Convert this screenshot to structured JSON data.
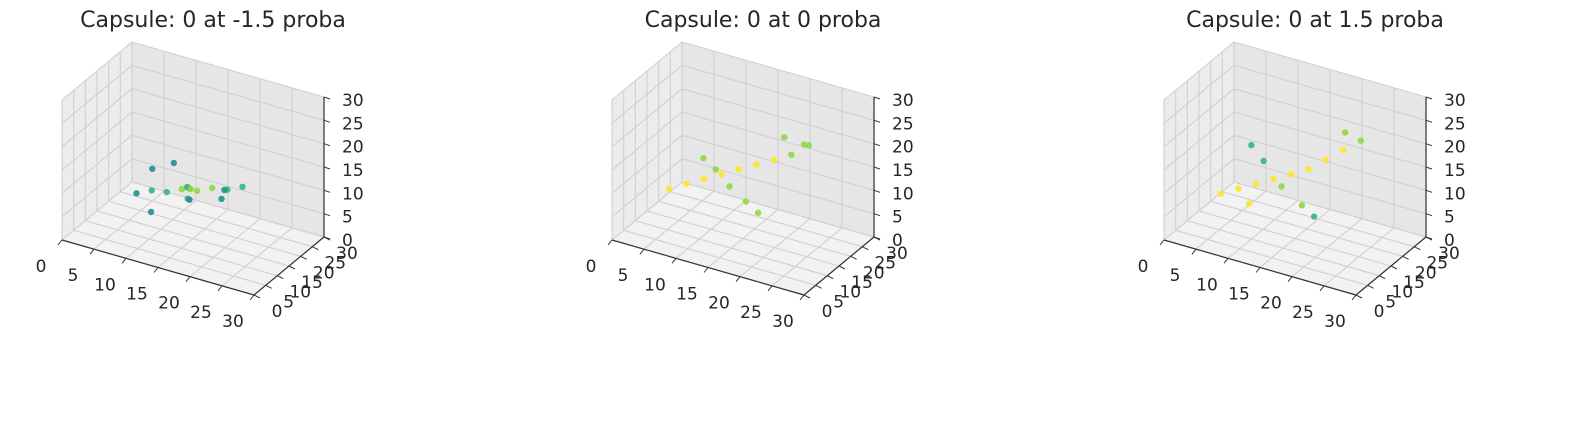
{
  "chart_data": [
    {
      "type": "scatter",
      "title": "Capsule: 0 at -1.5 proba",
      "xlabel": "",
      "ylabel": "",
      "zlabel": "",
      "xlim": [
        0,
        30
      ],
      "ylim": [
        0,
        30
      ],
      "zlim": [
        0,
        30
      ],
      "x_ticks": [
        "0",
        "5",
        "10",
        "15",
        "20",
        "25",
        "30"
      ],
      "y_ticks": [
        "0",
        "5",
        "10",
        "15",
        "20",
        "25",
        "30"
      ],
      "z_ticks": [
        "0",
        "5",
        "10",
        "15",
        "20",
        "25",
        "30"
      ],
      "grid": true,
      "colormap": [
        "#440154",
        "#31688e",
        "#21918c",
        "#35b779",
        "#90d743",
        "#fde725"
      ],
      "points": [
        {
          "x": 8,
          "y": 10,
          "z": 9,
          "v": 0.4
        },
        {
          "x": 10,
          "y": 11,
          "z": 10,
          "v": 0.5
        },
        {
          "x": 12,
          "y": 12,
          "z": 10,
          "v": 0.6
        },
        {
          "x": 14,
          "y": 13,
          "z": 11,
          "v": 0.7
        },
        {
          "x": 16,
          "y": 14,
          "z": 11,
          "v": 0.8
        },
        {
          "x": 18,
          "y": 15,
          "z": 12,
          "v": 0.7
        },
        {
          "x": 20,
          "y": 16,
          "z": 12,
          "v": 0.6
        },
        {
          "x": 22,
          "y": 17,
          "z": 13,
          "v": 0.5
        },
        {
          "x": 13,
          "y": 18,
          "z": 9,
          "v": 0.5
        },
        {
          "x": 14,
          "y": 16,
          "z": 10,
          "v": 0.6
        },
        {
          "x": 15,
          "y": 14,
          "z": 11,
          "v": 0.7
        },
        {
          "x": 16,
          "y": 10,
          "z": 11,
          "v": 0.5
        },
        {
          "x": 17,
          "y": 8,
          "z": 12,
          "v": 0.4
        },
        {
          "x": 9,
          "y": 14,
          "z": 13,
          "v": 0.3
        },
        {
          "x": 21,
          "y": 12,
          "z": 14,
          "v": 0.3
        },
        {
          "x": 12,
          "y": 15,
          "z": 15,
          "v": 0.4
        },
        {
          "x": 18,
          "y": 19,
          "z": 8,
          "v": 0.3
        },
        {
          "x": 11,
          "y": 8,
          "z": 7,
          "v": 0.3
        }
      ]
    },
    {
      "type": "scatter",
      "title": "Capsule: 0 at 0 proba",
      "xlabel": "",
      "ylabel": "",
      "zlabel": "",
      "xlim": [
        0,
        30
      ],
      "ylim": [
        0,
        30
      ],
      "zlim": [
        0,
        30
      ],
      "x_ticks": [
        "0",
        "5",
        "10",
        "15",
        "20",
        "25",
        "30"
      ],
      "y_ticks": [
        "0",
        "5",
        "10",
        "15",
        "20",
        "25",
        "30"
      ],
      "z_ticks": [
        "0",
        "5",
        "10",
        "15",
        "20",
        "25",
        "30"
      ],
      "grid": true,
      "colormap": [
        "#440154",
        "#31688e",
        "#21918c",
        "#35b779",
        "#90d743",
        "#fde725"
      ],
      "points": [
        {
          "x": 6,
          "y": 8,
          "z": 10,
          "v": 0.9
        },
        {
          "x": 8,
          "y": 10,
          "z": 11,
          "v": 0.95
        },
        {
          "x": 10,
          "y": 12,
          "z": 12,
          "v": 1.0
        },
        {
          "x": 12,
          "y": 14,
          "z": 13,
          "v": 1.0
        },
        {
          "x": 14,
          "y": 16,
          "z": 14,
          "v": 1.0
        },
        {
          "x": 16,
          "y": 18,
          "z": 15,
          "v": 0.95
        },
        {
          "x": 18,
          "y": 20,
          "z": 16,
          "v": 0.9
        },
        {
          "x": 20,
          "y": 22,
          "z": 17,
          "v": 0.85
        },
        {
          "x": 22,
          "y": 24,
          "z": 19,
          "v": 0.8
        },
        {
          "x": 7,
          "y": 20,
          "z": 12,
          "v": 0.7
        },
        {
          "x": 10,
          "y": 17,
          "z": 12,
          "v": 0.75
        },
        {
          "x": 14,
          "y": 12,
          "z": 12,
          "v": 0.8
        },
        {
          "x": 18,
          "y": 8,
          "z": 12,
          "v": 0.75
        },
        {
          "x": 21,
          "y": 5,
          "z": 12,
          "v": 0.7
        },
        {
          "x": 20,
          "y": 19,
          "z": 22,
          "v": 0.8
        },
        {
          "x": 22,
          "y": 22,
          "z": 20,
          "v": 0.8
        }
      ]
    },
    {
      "type": "scatter",
      "title": "Capsule: 0 at 1.5 proba",
      "xlabel": "",
      "ylabel": "",
      "zlabel": "",
      "xlim": [
        0,
        30
      ],
      "ylim": [
        0,
        30
      ],
      "zlim": [
        0,
        30
      ],
      "x_ticks": [
        "0",
        "5",
        "10",
        "15",
        "20",
        "25",
        "30"
      ],
      "y_ticks": [
        "0",
        "5",
        "10",
        "15",
        "20",
        "25",
        "30"
      ],
      "z_ticks": [
        "0",
        "5",
        "10",
        "15",
        "20",
        "25",
        "30"
      ],
      "grid": true,
      "colormap": [
        "#440154",
        "#31688e",
        "#21918c",
        "#35b779",
        "#90d743",
        "#fde725"
      ],
      "points": [
        {
          "x": 6,
          "y": 8,
          "z": 9,
          "v": 1.0
        },
        {
          "x": 8,
          "y": 10,
          "z": 10,
          "v": 1.0
        },
        {
          "x": 10,
          "y": 12,
          "z": 11,
          "v": 1.0
        },
        {
          "x": 12,
          "y": 14,
          "z": 12,
          "v": 1.0
        },
        {
          "x": 14,
          "y": 16,
          "z": 13,
          "v": 1.0
        },
        {
          "x": 16,
          "y": 18,
          "z": 14,
          "v": 1.0
        },
        {
          "x": 18,
          "y": 20,
          "z": 16,
          "v": 0.95
        },
        {
          "x": 20,
          "y": 22,
          "z": 18,
          "v": 0.9
        },
        {
          "x": 22,
          "y": 24,
          "z": 20,
          "v": 0.85
        },
        {
          "x": 6,
          "y": 21,
          "z": 14,
          "v": 0.6
        },
        {
          "x": 9,
          "y": 18,
          "z": 13,
          "v": 0.65
        },
        {
          "x": 14,
          "y": 12,
          "z": 12,
          "v": 0.8
        },
        {
          "x": 19,
          "y": 7,
          "z": 12,
          "v": 0.7
        },
        {
          "x": 22,
          "y": 4,
          "z": 12,
          "v": 0.6
        },
        {
          "x": 21,
          "y": 20,
          "z": 23,
          "v": 0.8
        },
        {
          "x": 10,
          "y": 9,
          "z": 8,
          "v": 0.9
        }
      ]
    }
  ]
}
